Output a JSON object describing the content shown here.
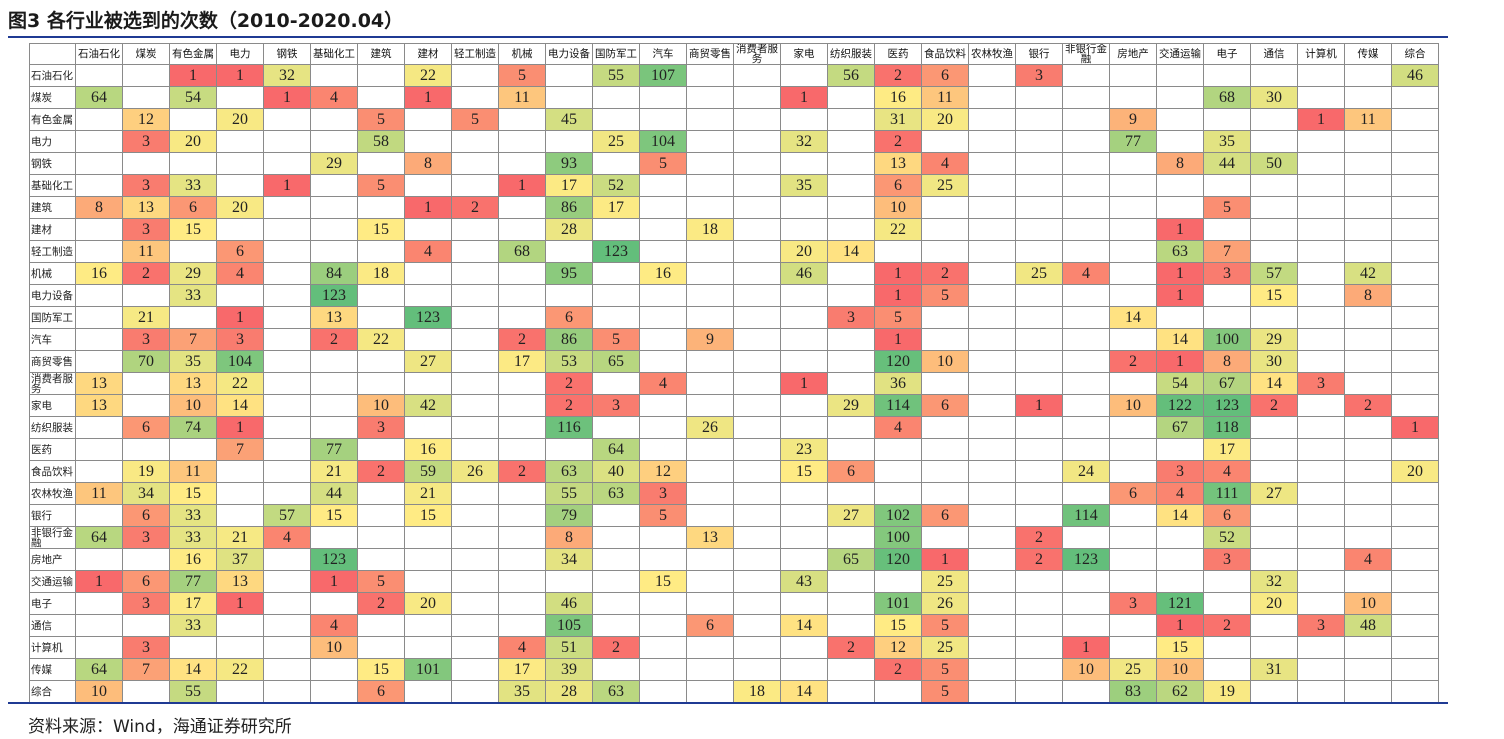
{
  "title": "图3  各行业被选到的次数（2010-2020.04）",
  "source": "资料来源：Wind，海通证券研究所",
  "colors": {
    "low": "#f8696b",
    "mid": "#ffeb84",
    "high": "#63be7b",
    "rule": "#1f3a93"
  },
  "chart_data": {
    "type": "heatmap",
    "title": "各行业被选到的次数（2010-2020.04）",
    "x_categories": [
      "石油石化",
      "煤炭",
      "有色金属",
      "电力",
      "钢铁",
      "基础化工",
      "建筑",
      "建材",
      "轻工制造",
      "机械",
      "电力设备",
      "国防军工",
      "汽车",
      "商贸零售",
      "消费者服务",
      "家电",
      "纺织服装",
      "医药",
      "食品饮料",
      "农林牧渔",
      "银行",
      "非银行金融",
      "房地产",
      "交通运输",
      "电子",
      "通信",
      "计算机",
      "传媒",
      "综合"
    ],
    "y_categories": [
      "石油石化",
      "煤炭",
      "有色金属",
      "电力",
      "钢铁",
      "基础化工",
      "建筑",
      "建材",
      "轻工制造",
      "机械",
      "电力设备",
      "国防军工",
      "汽车",
      "商贸零售",
      "消费者服务",
      "家电",
      "纺织服装",
      "医药",
      "食品饮料",
      "农林牧渔",
      "银行",
      "非银行金融",
      "房地产",
      "交通运输",
      "电子",
      "通信",
      "计算机",
      "传媒",
      "综合"
    ],
    "value_range": [
      1,
      123
    ],
    "values": [
      [
        null,
        null,
        1,
        1,
        32,
        null,
        null,
        22,
        null,
        5,
        null,
        55,
        107,
        null,
        null,
        null,
        56,
        2,
        6,
        null,
        3,
        null,
        null,
        null,
        null,
        null,
        null,
        null,
        46
      ],
      [
        64,
        null,
        54,
        null,
        1,
        4,
        null,
        1,
        null,
        11,
        null,
        null,
        null,
        null,
        null,
        1,
        null,
        16,
        11,
        null,
        null,
        null,
        null,
        null,
        68,
        30,
        null,
        null,
        null
      ],
      [
        null,
        12,
        null,
        20,
        null,
        null,
        5,
        null,
        5,
        null,
        45,
        null,
        null,
        null,
        null,
        null,
        null,
        31,
        20,
        null,
        null,
        null,
        9,
        null,
        null,
        null,
        1,
        11,
        null
      ],
      [
        null,
        3,
        20,
        null,
        null,
        null,
        58,
        null,
        null,
        null,
        null,
        25,
        104,
        null,
        null,
        32,
        null,
        2,
        null,
        null,
        null,
        null,
        77,
        null,
        35,
        null,
        null,
        null,
        null
      ],
      [
        null,
        null,
        null,
        null,
        null,
        29,
        null,
        8,
        null,
        null,
        93,
        null,
        5,
        null,
        null,
        null,
        null,
        13,
        4,
        null,
        null,
        null,
        null,
        8,
        44,
        50,
        null,
        null,
        null
      ],
      [
        null,
        3,
        33,
        null,
        1,
        null,
        5,
        null,
        null,
        1,
        17,
        52,
        null,
        null,
        null,
        35,
        null,
        6,
        25,
        null,
        null,
        null,
        null,
        null,
        null,
        null,
        null,
        null,
        null
      ],
      [
        8,
        13,
        6,
        20,
        null,
        null,
        null,
        1,
        2,
        null,
        86,
        17,
        null,
        null,
        null,
        null,
        null,
        10,
        null,
        null,
        null,
        null,
        null,
        null,
        5,
        null,
        null,
        null,
        null
      ],
      [
        null,
        3,
        15,
        null,
        null,
        null,
        15,
        null,
        null,
        null,
        28,
        null,
        null,
        18,
        null,
        null,
        null,
        22,
        null,
        null,
        null,
        null,
        null,
        1,
        null,
        null,
        null,
        null,
        null
      ],
      [
        null,
        11,
        null,
        6,
        null,
        null,
        null,
        4,
        null,
        68,
        null,
        123,
        null,
        null,
        null,
        20,
        14,
        null,
        null,
        null,
        null,
        null,
        null,
        63,
        7,
        null,
        null,
        null,
        null
      ],
      [
        16,
        2,
        29,
        4,
        null,
        84,
        18,
        null,
        null,
        null,
        95,
        null,
        16,
        null,
        null,
        46,
        null,
        1,
        2,
        null,
        25,
        4,
        null,
        1,
        3,
        57,
        null,
        42,
        null
      ],
      [
        null,
        null,
        33,
        null,
        null,
        123,
        null,
        null,
        null,
        null,
        null,
        null,
        null,
        null,
        null,
        null,
        null,
        1,
        5,
        null,
        null,
        null,
        null,
        1,
        null,
        15,
        null,
        8,
        null
      ],
      [
        null,
        21,
        null,
        1,
        null,
        13,
        null,
        123,
        null,
        null,
        6,
        null,
        null,
        null,
        null,
        null,
        3,
        5,
        null,
        null,
        null,
        null,
        14,
        null,
        null,
        null,
        null,
        null,
        null
      ],
      [
        null,
        3,
        7,
        3,
        null,
        2,
        22,
        null,
        null,
        2,
        86,
        5,
        null,
        9,
        null,
        null,
        null,
        1,
        null,
        null,
        null,
        null,
        null,
        14,
        100,
        29,
        null,
        null,
        null
      ],
      [
        null,
        70,
        35,
        104,
        null,
        null,
        null,
        27,
        null,
        17,
        53,
        65,
        null,
        null,
        null,
        null,
        null,
        120,
        10,
        null,
        null,
        null,
        2,
        1,
        8,
        30,
        null,
        null,
        null
      ],
      [
        13,
        null,
        13,
        22,
        null,
        null,
        null,
        null,
        null,
        null,
        2,
        null,
        4,
        null,
        null,
        1,
        null,
        36,
        null,
        null,
        null,
        null,
        null,
        54,
        67,
        14,
        3,
        null,
        null
      ],
      [
        13,
        null,
        10,
        14,
        null,
        null,
        10,
        42,
        null,
        null,
        2,
        3,
        null,
        null,
        null,
        null,
        29,
        114,
        6,
        null,
        1,
        null,
        10,
        122,
        123,
        2,
        null,
        2,
        null
      ],
      [
        null,
        6,
        74,
        1,
        null,
        null,
        3,
        null,
        null,
        null,
        116,
        null,
        null,
        26,
        null,
        null,
        null,
        4,
        null,
        null,
        null,
        null,
        null,
        67,
        118,
        null,
        null,
        null,
        1
      ],
      [
        null,
        null,
        null,
        7,
        null,
        77,
        null,
        16,
        null,
        null,
        null,
        64,
        null,
        null,
        null,
        23,
        null,
        null,
        null,
        null,
        null,
        null,
        null,
        null,
        17,
        null,
        null,
        null,
        null
      ],
      [
        null,
        19,
        11,
        null,
        null,
        21,
        2,
        59,
        26,
        2,
        63,
        40,
        12,
        null,
        null,
        15,
        6,
        null,
        null,
        null,
        null,
        24,
        null,
        3,
        4,
        null,
        null,
        null,
        20
      ],
      [
        11,
        34,
        15,
        null,
        null,
        44,
        null,
        21,
        null,
        null,
        55,
        63,
        3,
        null,
        null,
        null,
        null,
        null,
        null,
        null,
        null,
        null,
        6,
        4,
        111,
        27,
        null,
        null,
        null
      ],
      [
        null,
        6,
        33,
        null,
        57,
        15,
        null,
        15,
        null,
        null,
        79,
        null,
        5,
        null,
        null,
        null,
        27,
        102,
        6,
        null,
        null,
        114,
        null,
        14,
        6,
        null,
        null,
        null,
        null
      ],
      [
        64,
        3,
        33,
        21,
        4,
        null,
        null,
        null,
        null,
        null,
        8,
        null,
        null,
        13,
        null,
        null,
        null,
        100,
        null,
        null,
        2,
        null,
        null,
        null,
        52,
        null,
        null,
        null,
        null
      ],
      [
        null,
        null,
        16,
        37,
        null,
        123,
        null,
        null,
        null,
        null,
        34,
        null,
        null,
        null,
        null,
        null,
        65,
        120,
        1,
        null,
        2,
        123,
        null,
        null,
        3,
        null,
        null,
        4,
        null
      ],
      [
        1,
        6,
        77,
        13,
        null,
        1,
        5,
        null,
        null,
        null,
        null,
        null,
        15,
        null,
        null,
        43,
        null,
        null,
        25,
        null,
        null,
        null,
        null,
        null,
        null,
        32,
        null,
        null,
        null
      ],
      [
        null,
        3,
        17,
        1,
        null,
        null,
        2,
        20,
        null,
        null,
        46,
        null,
        null,
        null,
        null,
        null,
        null,
        101,
        26,
        null,
        null,
        null,
        3,
        121,
        null,
        20,
        null,
        10,
        null
      ],
      [
        null,
        null,
        33,
        null,
        null,
        4,
        null,
        null,
        null,
        null,
        105,
        null,
        null,
        6,
        null,
        14,
        null,
        15,
        5,
        null,
        null,
        null,
        null,
        1,
        2,
        null,
        3,
        48,
        null
      ],
      [
        null,
        3,
        null,
        null,
        null,
        10,
        null,
        null,
        null,
        4,
        51,
        2,
        null,
        null,
        null,
        null,
        2,
        12,
        25,
        null,
        null,
        1,
        null,
        15,
        null,
        null,
        null,
        null,
        null
      ],
      [
        64,
        7,
        14,
        22,
        null,
        null,
        15,
        101,
        null,
        17,
        39,
        null,
        null,
        null,
        null,
        null,
        null,
        2,
        5,
        null,
        null,
        10,
        25,
        10,
        null,
        31,
        null,
        null,
        null
      ],
      [
        10,
        null,
        55,
        null,
        null,
        null,
        6,
        null,
        null,
        35,
        28,
        63,
        null,
        null,
        18,
        14,
        null,
        null,
        5,
        null,
        null,
        null,
        83,
        62,
        19,
        null,
        null,
        null,
        null
      ]
    ]
  }
}
